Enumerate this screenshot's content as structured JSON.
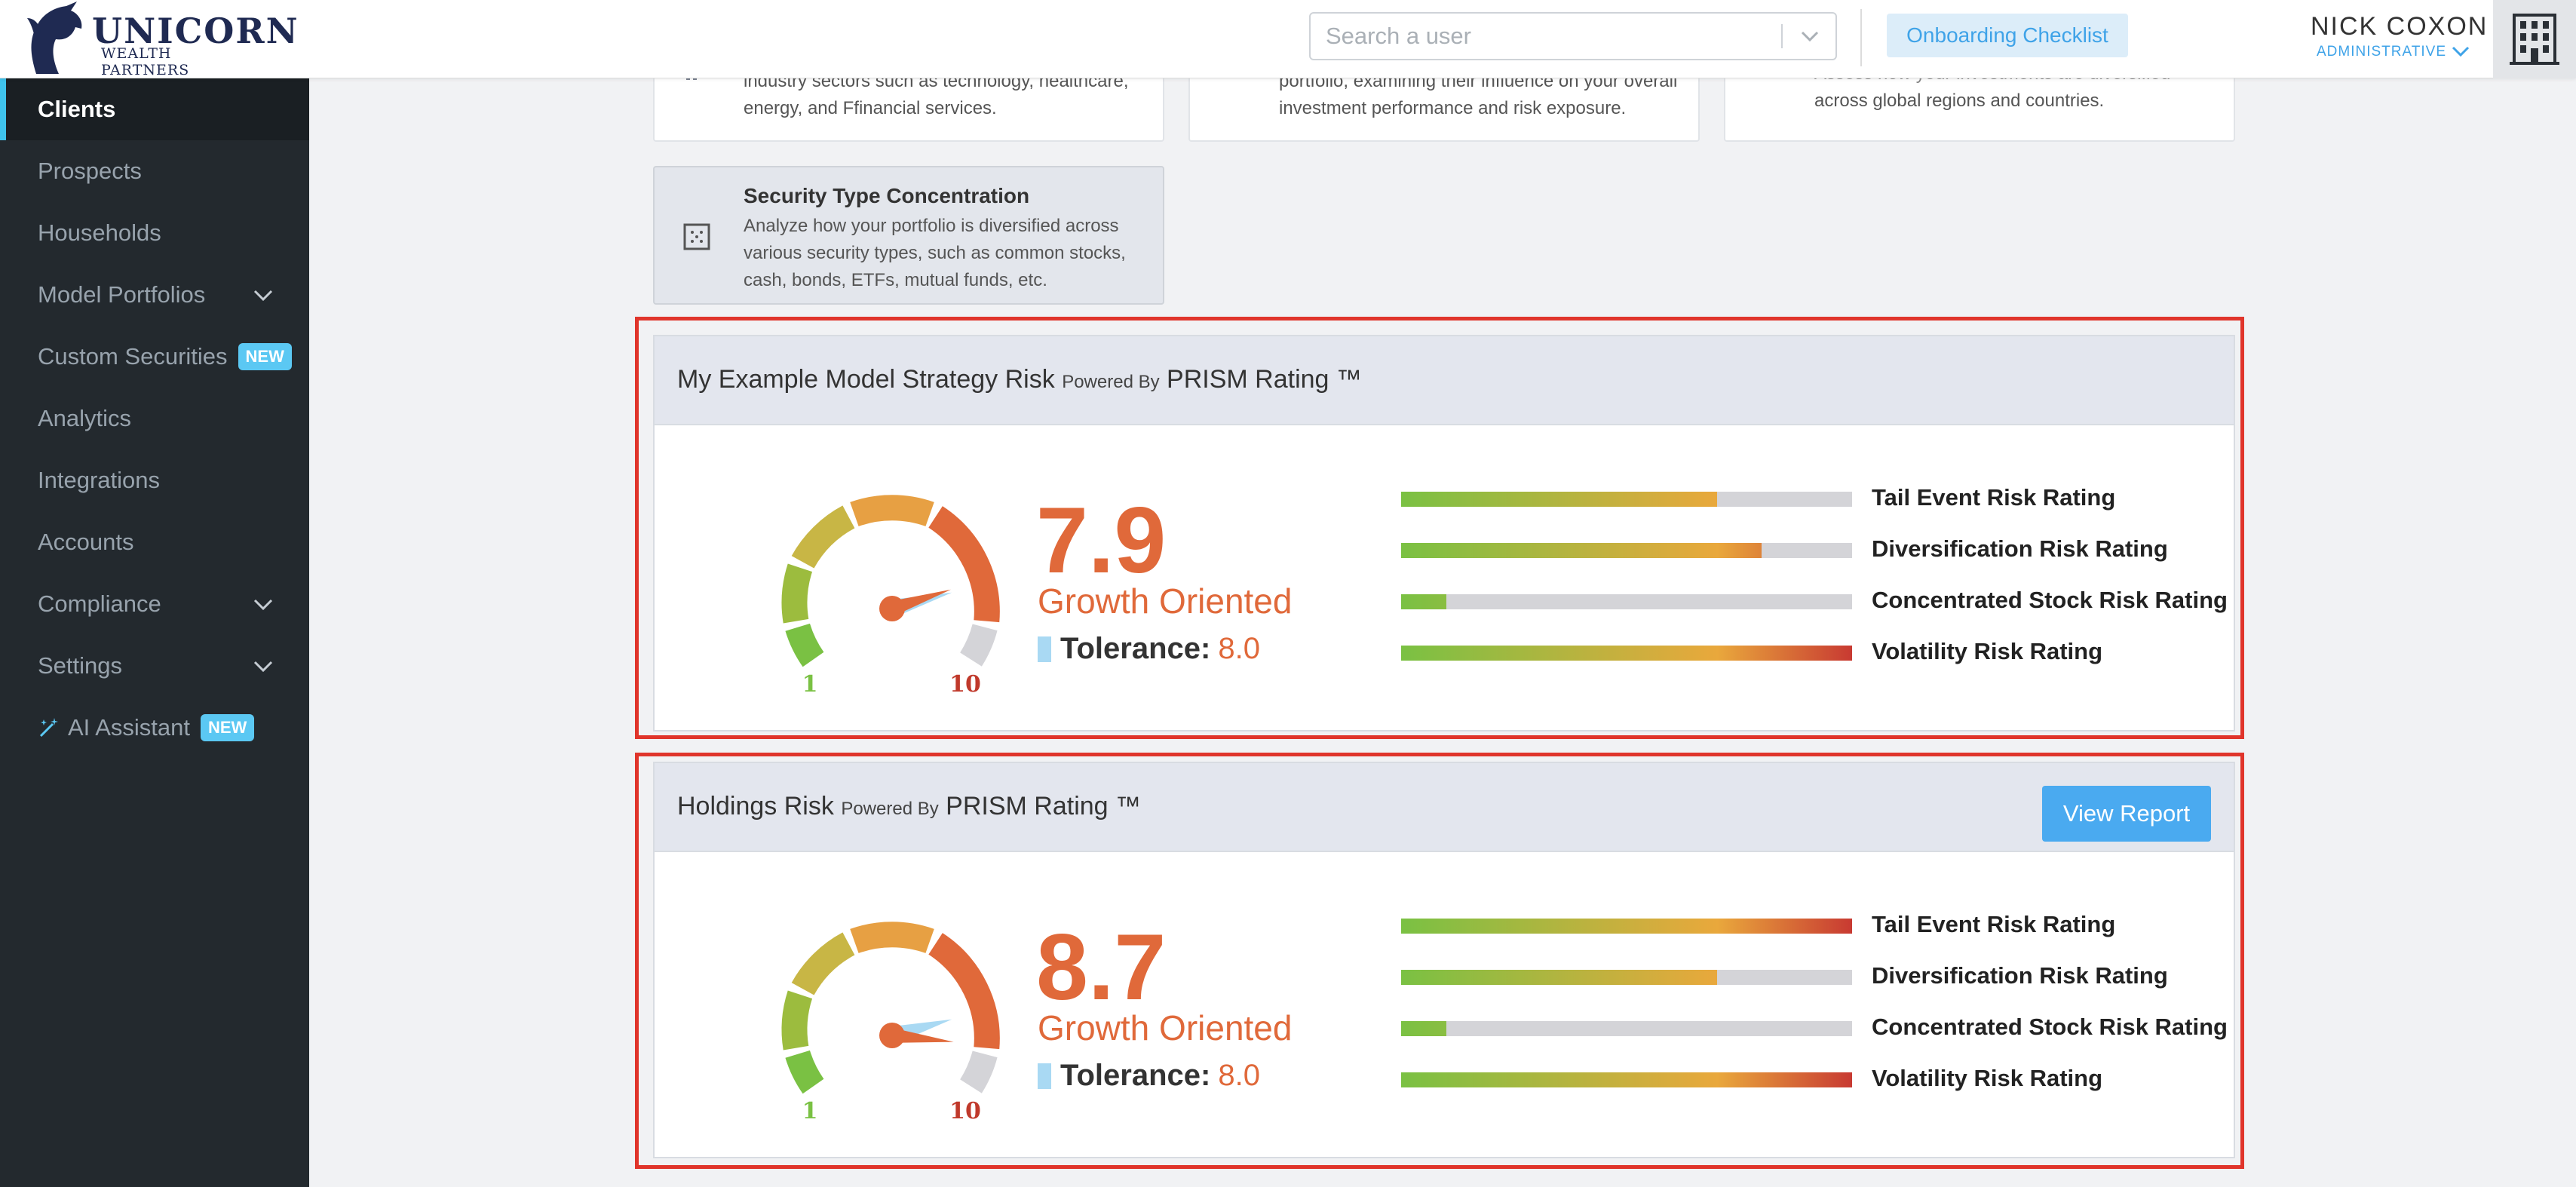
{
  "brand": {
    "name": "UNICORN",
    "sub": "WEALTH PARTNERS"
  },
  "header": {
    "search_placeholder": "Search a user",
    "onboarding_label": "Onboarding Checklist",
    "user_name": "NICK COXON",
    "user_role": "ADMINISTRATIVE"
  },
  "sidebar": {
    "items": [
      {
        "label": "Clients",
        "active": true
      },
      {
        "label": "Prospects"
      },
      {
        "label": "Households"
      },
      {
        "label": "Model Portfolios",
        "expandable": true
      },
      {
        "label": "Custom Securities",
        "badge": "NEW"
      },
      {
        "label": "Analytics"
      },
      {
        "label": "Integrations"
      },
      {
        "label": "Accounts"
      },
      {
        "label": "Compliance",
        "expandable": true
      },
      {
        "label": "Settings",
        "expandable": true
      },
      {
        "label": "AI Assistant",
        "badge": "NEW",
        "icon": "wand-icon"
      }
    ]
  },
  "analysis_cards": [
    {
      "text_line1": "industry sectors such as technology, healthcare,",
      "text_line2": "energy, and Ffinancial services.",
      "icon": "bar-chart-icon"
    },
    {
      "text_line1": "portfolio, examining their influence on your overall",
      "text_line2": "investment performance and risk exposure.",
      "icon": "factor-icon"
    },
    {
      "text_line1": "Assess how your investments are diversified",
      "text_line2": "across global regions and countries.",
      "icon": "globe-icon"
    }
  ],
  "security_card": {
    "title": "Security Type Concentration",
    "desc": "Analyze how your portfolio is diversified across various security types, such as common stocks, cash, bonds, ETFs, mutual funds, etc.",
    "icon": "grid-icon"
  },
  "risk_panels": [
    {
      "title": "My Example Model Strategy Risk",
      "powered_by": "Powered By",
      "rating_name": "PRISM Rating ™",
      "score": "7.9",
      "score_value": 7.9,
      "orientation": "Growth Oriented",
      "tolerance_label": "Tolerance:",
      "tolerance_value": "8.0",
      "gauge_min": "1",
      "gauge_max": "10",
      "ratings": [
        {
          "label": "Tail Event Risk Rating",
          "fill": 0.7
        },
        {
          "label": "Diversification Risk Rating",
          "fill": 0.8
        },
        {
          "label": "Concentrated Stock Risk Rating",
          "fill": 0.1
        },
        {
          "label": "Volatility Risk Rating",
          "fill": 1.0
        }
      ]
    },
    {
      "title": "Holdings Risk",
      "powered_by": "Powered By",
      "rating_name": "PRISM Rating ™",
      "button": "View Report",
      "score": "8.7",
      "score_value": 8.7,
      "orientation": "Growth Oriented",
      "tolerance_label": "Tolerance:",
      "tolerance_value": "8.0",
      "gauge_min": "1",
      "gauge_max": "10",
      "ratings": [
        {
          "label": "Tail Event Risk Rating",
          "fill": 1.0
        },
        {
          "label": "Diversification Risk Rating",
          "fill": 0.7
        },
        {
          "label": "Concentrated Stock Risk Rating",
          "fill": 0.1
        },
        {
          "label": "Volatility Risk Rating",
          "fill": 1.0
        }
      ]
    }
  ],
  "colors": {
    "accent": "#3fa3e8",
    "score": "#e0693a",
    "highlight": "#e0352b",
    "gauge_tolerance": "#a9d9f3"
  }
}
